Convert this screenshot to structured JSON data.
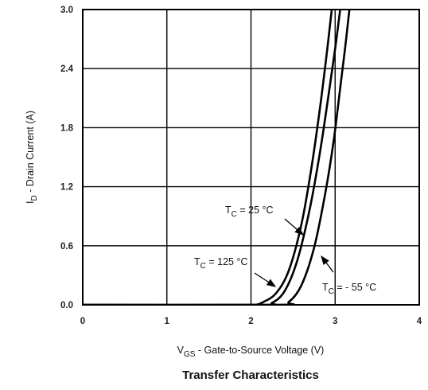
{
  "chart_data": {
    "type": "line",
    "title": "Transfer Characteristics",
    "xlabel": {
      "main": "V",
      "sub": "GS",
      "rest": " - Gate-to-Source Voltage (V)"
    },
    "ylabel": {
      "main": "I",
      "sub": "D",
      "rest": " - Drain Current (A)"
    },
    "xlim": [
      0,
      4
    ],
    "ylim": [
      0,
      3.0
    ],
    "xticks": [
      "0",
      "1",
      "2",
      "3",
      "4"
    ],
    "yticks": [
      "0.0",
      "0.6",
      "1.2",
      "1.8",
      "2.4",
      "3.0"
    ],
    "grid": true,
    "series": [
      {
        "name": "TC = 125 °C",
        "x": [
          0,
          1.9,
          2.05,
          2.15,
          2.3,
          2.45,
          2.6,
          2.72,
          2.82,
          2.9,
          2.96
        ],
        "y": [
          0,
          0,
          0.0,
          0.03,
          0.12,
          0.35,
          0.82,
          1.4,
          2.0,
          2.55,
          3.0
        ]
      },
      {
        "name": "TC = 25 °C",
        "x": [
          0,
          2.1,
          2.25,
          2.4,
          2.55,
          2.7,
          2.82,
          2.92,
          3.0,
          3.06
        ],
        "y": [
          0,
          0,
          0.02,
          0.14,
          0.45,
          0.98,
          1.55,
          2.12,
          2.6,
          3.0
        ]
      },
      {
        "name": "TC = - 55 °C",
        "x": [
          0,
          2.3,
          2.45,
          2.6,
          2.75,
          2.88,
          2.98,
          3.06,
          3.12,
          3.17
        ],
        "y": [
          0,
          0,
          0.03,
          0.2,
          0.58,
          1.12,
          1.65,
          2.2,
          2.62,
          3.0
        ]
      }
    ],
    "annotations": [
      {
        "main": "T",
        "sub": "C",
        "rest": " = 25 °C"
      },
      {
        "main": "T",
        "sub": "C",
        "rest": " = 125 °C"
      },
      {
        "main": "T",
        "sub": "C",
        "rest": " = - 55 °C"
      }
    ]
  }
}
